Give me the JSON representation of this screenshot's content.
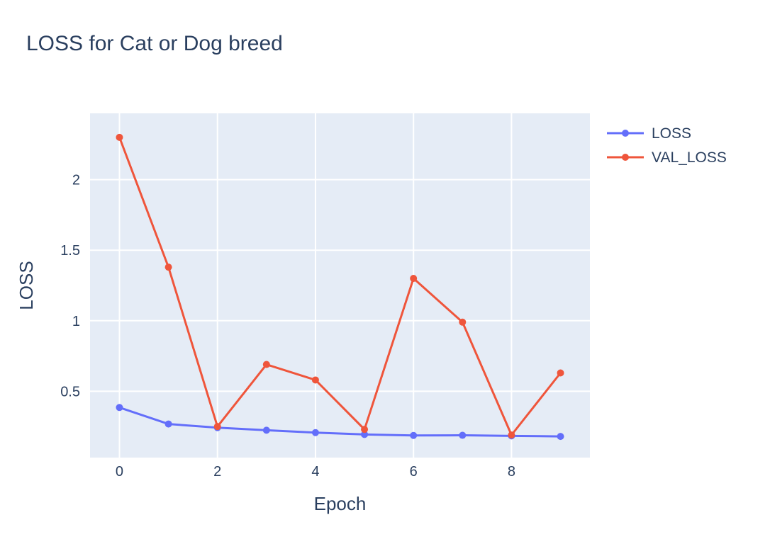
{
  "chart_data": {
    "type": "line",
    "title": "LOSS for Cat or Dog breed",
    "xlabel": "Epoch",
    "ylabel": "LOSS",
    "x": [
      0,
      1,
      2,
      3,
      4,
      5,
      6,
      7,
      8,
      9
    ],
    "xlim": [
      -0.6,
      9.6
    ],
    "ylim": [
      0.03,
      2.47
    ],
    "x_ticks": [
      0,
      2,
      4,
      6,
      8
    ],
    "y_ticks": [
      0.5,
      1,
      1.5,
      2
    ],
    "x_tick_labels": [
      "0",
      "2",
      "4",
      "6",
      "8"
    ],
    "y_tick_labels": [
      "0.5",
      "1",
      "1.5",
      "2"
    ],
    "grid": true,
    "legend_position": "top-right outside",
    "series": [
      {
        "name": "LOSS",
        "color": "#636efa",
        "values": [
          0.385,
          0.268,
          0.242,
          0.224,
          0.207,
          0.194,
          0.187,
          0.188,
          0.184,
          0.18
        ]
      },
      {
        "name": "VAL_LOSS",
        "color": "#ef553b",
        "values": [
          2.3,
          1.38,
          0.25,
          0.69,
          0.58,
          0.23,
          1.3,
          0.99,
          0.19,
          0.63
        ]
      }
    ]
  }
}
